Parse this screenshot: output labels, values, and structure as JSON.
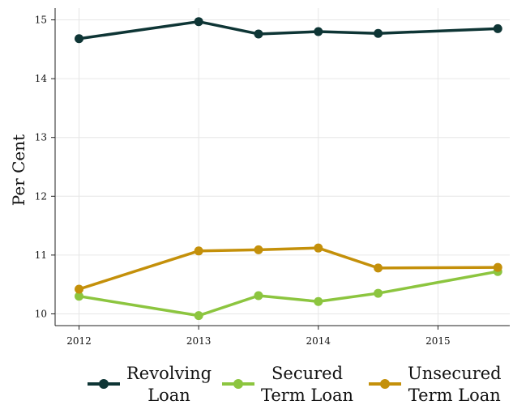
{
  "chart_data": {
    "type": "line",
    "title": "",
    "xlabel": "",
    "ylabel": "Per Cent",
    "xlim": [
      2011.8,
      2015.6
    ],
    "ylim": [
      9.8,
      15.2
    ],
    "x_ticks": [
      "2012",
      "2013",
      "2014",
      "2015"
    ],
    "y_ticks": [
      "10",
      "11",
      "12",
      "13",
      "14",
      "15"
    ],
    "grid": true,
    "legend_position": "bottom",
    "x": [
      2012.0,
      2013.0,
      2013.5,
      2014.0,
      2014.5,
      2015.5
    ],
    "series": [
      {
        "name": "Revolving Loan",
        "name_lines": [
          "Revolving",
          "Loan"
        ],
        "color": "#0e3535",
        "values": [
          14.68,
          14.97,
          14.76,
          14.8,
          14.77,
          14.85
        ]
      },
      {
        "name": "Secured Term Loan",
        "name_lines": [
          "Secured",
          "Term Loan"
        ],
        "color": "#8cc53f",
        "values": [
          10.3,
          9.97,
          10.31,
          10.21,
          10.35,
          10.72
        ]
      },
      {
        "name": "Unsecured Term Loan",
        "name_lines": [
          "Unsecured",
          "Term Loan"
        ],
        "color": "#c4900a",
        "values": [
          10.42,
          11.07,
          11.09,
          11.12,
          10.78,
          10.79
        ]
      }
    ]
  }
}
